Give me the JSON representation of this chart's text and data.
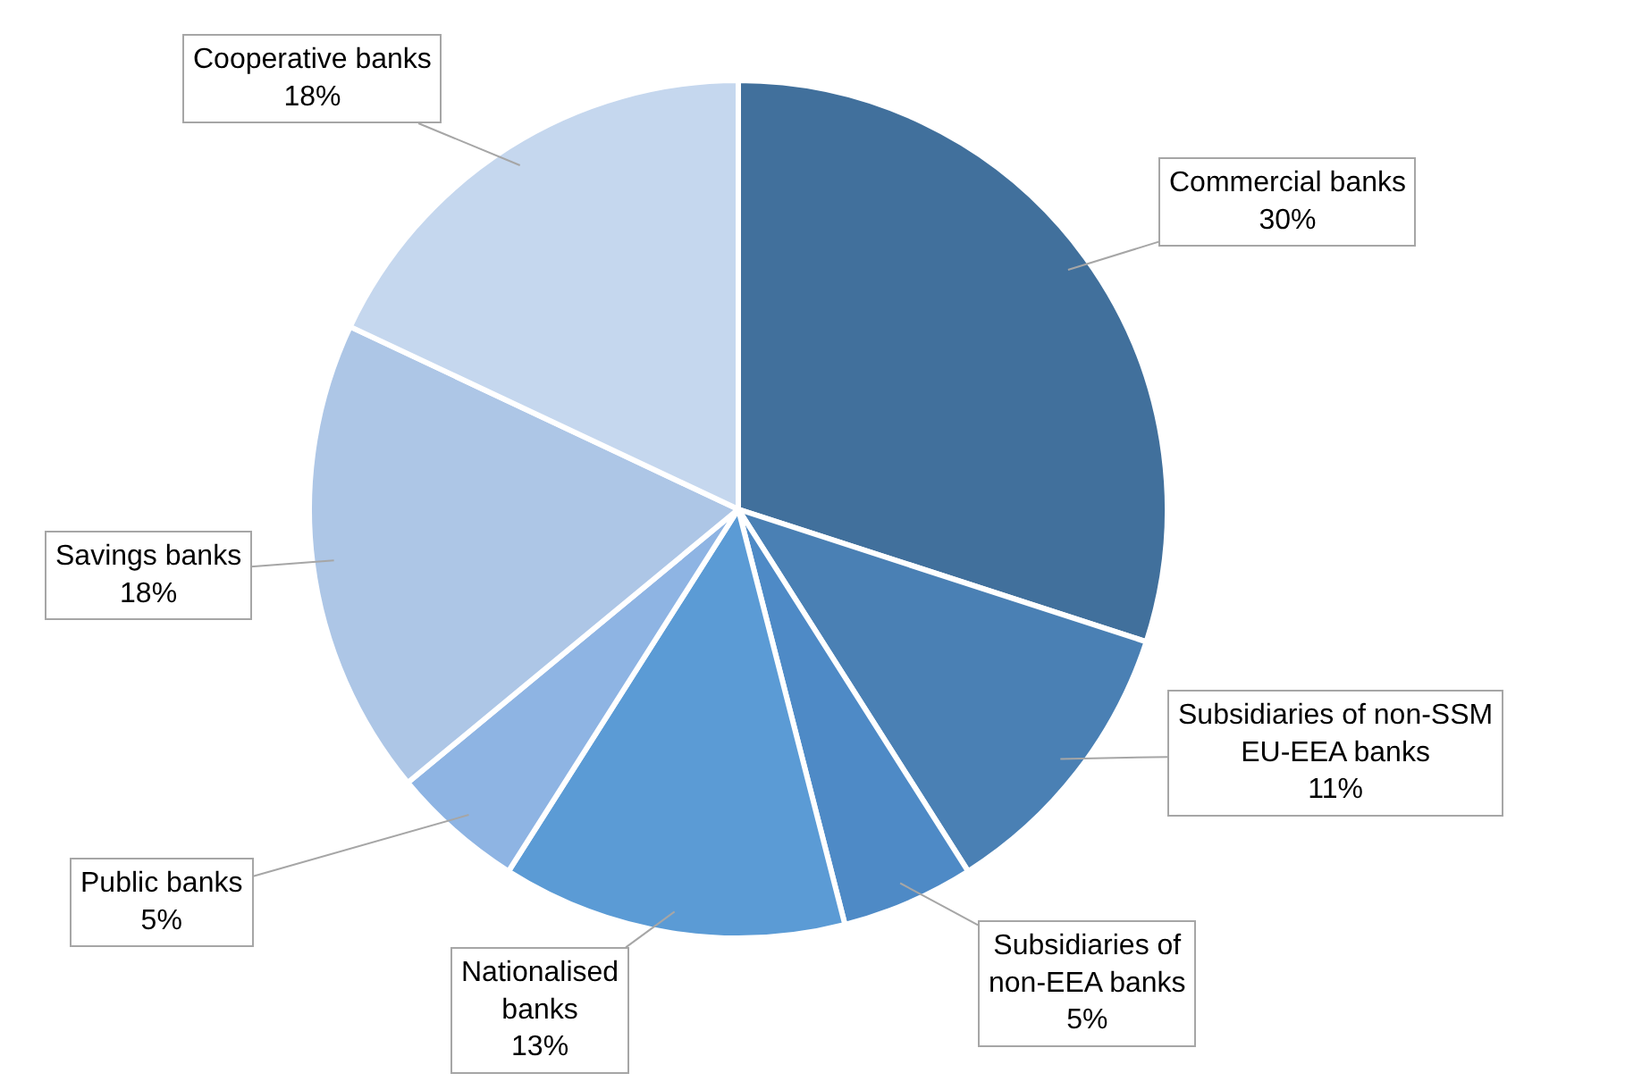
{
  "chart_data": {
    "type": "pie",
    "categories": [
      "Commercial banks",
      "Subsidiaries of non-SSM EU-EEA banks",
      "Subsidiaries of non-EEA banks",
      "Nationalised banks",
      "Public banks",
      "Savings banks",
      "Cooperative banks"
    ],
    "values": [
      30,
      11,
      5,
      13,
      5,
      18,
      18
    ],
    "colors": [
      "#41709c",
      "#4a80b4",
      "#4e8ac6",
      "#5b9bd5",
      "#8eb4e3",
      "#adc6e6",
      "#c5d7ee"
    ],
    "value_labels": [
      "30%",
      "11%",
      "5%",
      "13%",
      "5%",
      "18%",
      "18%"
    ],
    "legend": false
  }
}
